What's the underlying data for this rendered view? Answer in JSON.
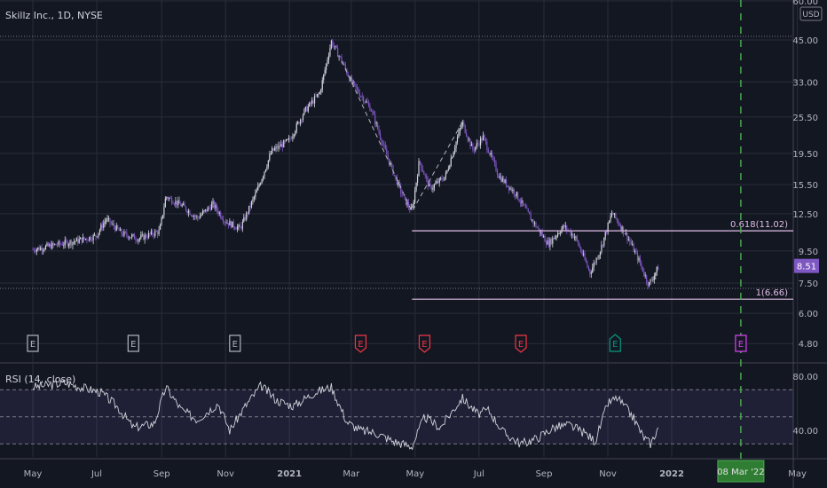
{
  "header": {
    "title": "Skillz Inc., 1D, NYSE",
    "currency": "USD"
  },
  "rsi_pane": {
    "title": "RSI (14, close)"
  },
  "chart_data": [
    {
      "type": "candlestick",
      "title": "Skillz Inc., 1D, NYSE",
      "y_scale": "log",
      "ylim": [
        4.2,
        60
      ],
      "y_ticks": [
        "60.00",
        "45.00",
        "33.00",
        "25.50",
        "19.50",
        "15.50",
        "12.50",
        "9.50",
        "7.50",
        "6.00",
        "4.80"
      ],
      "x_ticks": [
        "May",
        "Jul",
        "Sep",
        "Nov",
        "2021",
        "Mar",
        "May",
        "Jul",
        "Sep",
        "Nov",
        "2022",
        "May"
      ],
      "series": [
        {
          "name": "price",
          "points": [
            [
              "2020-05-01",
              9.6
            ],
            [
              "2020-05-20",
              9.9
            ],
            [
              "2020-06-10",
              10.2
            ],
            [
              "2020-06-30",
              10.6
            ],
            [
              "2020-07-10",
              12.0
            ],
            [
              "2020-07-25",
              10.8
            ],
            [
              "2020-08-10",
              10.4
            ],
            [
              "2020-08-30",
              11.0
            ],
            [
              "2020-09-05",
              14.2
            ],
            [
              "2020-09-20",
              13.3
            ],
            [
              "2020-10-05",
              12.1
            ],
            [
              "2020-10-20",
              13.4
            ],
            [
              "2020-11-01",
              11.8
            ],
            [
              "2020-11-15",
              11.2
            ],
            [
              "2020-12-01",
              14.8
            ],
            [
              "2020-12-15",
              19.8
            ],
            [
              "2021-01-01",
              21.5
            ],
            [
              "2021-01-15",
              26.5
            ],
            [
              "2021-01-30",
              30.5
            ],
            [
              "2021-02-10",
              44.5
            ],
            [
              "2021-02-20",
              38.5
            ],
            [
              "2021-03-01",
              33.0
            ],
            [
              "2021-03-10",
              30.0
            ],
            [
              "2021-03-20",
              27.0
            ],
            [
              "2021-04-01",
              20.5
            ],
            [
              "2021-04-10",
              17.0
            ],
            [
              "2021-04-20",
              14.0
            ],
            [
              "2021-04-28",
              12.7
            ],
            [
              "2021-05-05",
              18.5
            ],
            [
              "2021-05-15",
              15.0
            ],
            [
              "2021-05-30",
              16.5
            ],
            [
              "2021-06-15",
              24.5
            ],
            [
              "2021-06-25",
              20.0
            ],
            [
              "2021-07-05",
              22.0
            ],
            [
              "2021-07-20",
              16.5
            ],
            [
              "2021-08-05",
              14.5
            ],
            [
              "2021-08-20",
              12.0
            ],
            [
              "2021-09-05",
              10.0
            ],
            [
              "2021-09-20",
              11.4
            ],
            [
              "2021-10-01",
              10.5
            ],
            [
              "2021-10-15",
              8.1
            ],
            [
              "2021-10-25",
              9.6
            ],
            [
              "2021-11-05",
              12.6
            ],
            [
              "2021-11-20",
              10.5
            ],
            [
              "2021-12-01",
              8.8
            ],
            [
              "2021-12-10",
              7.4
            ],
            [
              "2021-12-20",
              8.51
            ]
          ]
        }
      ],
      "last_price": "8.51",
      "annotations": [
        {
          "type": "fib_level",
          "ratio": "0.618",
          "label": "0.618(11.02)",
          "value": 11.02,
          "from": "2021-04-28"
        },
        {
          "type": "fib_level",
          "ratio": "1",
          "label": "1(6.66)",
          "value": 6.66,
          "from": "2021-04-28"
        },
        {
          "type": "dashed_line",
          "points": [
            [
              "2021-02-20",
              38.5
            ],
            [
              "2021-04-28",
              12.7
            ],
            [
              "2021-06-15",
              24.5
            ]
          ]
        },
        {
          "type": "vertical_marker",
          "date": "2022-03-08",
          "label": "08 Mar '22"
        }
      ],
      "earnings_events": [
        {
          "date": "2020-05-01",
          "label": "E",
          "kind": "neutral"
        },
        {
          "date": "2020-08-05",
          "label": "E",
          "kind": "neutral"
        },
        {
          "date": "2020-11-10",
          "label": "E",
          "kind": "neutral"
        },
        {
          "date": "2021-03-10",
          "label": "E",
          "kind": "miss"
        },
        {
          "date": "2021-05-10",
          "label": "E",
          "kind": "miss"
        },
        {
          "date": "2021-08-10",
          "label": "E",
          "kind": "miss"
        },
        {
          "date": "2021-11-08",
          "label": "E",
          "kind": "beat"
        },
        {
          "date": "2022-03-08",
          "label": "E",
          "kind": "upcoming"
        }
      ],
      "colors": {
        "background": "#131722",
        "candle_up": "#d1d4dc",
        "candle_down": "#7e57c2",
        "fib": "#e1bee7",
        "last_price_bg": "#7e57c2",
        "marker": "#4caf50",
        "miss": "#f23645",
        "beat": "#089981",
        "upcoming": "#e040fb"
      }
    },
    {
      "type": "line",
      "title": "RSI (14, close)",
      "ylim": [
        25,
        90
      ],
      "y_ticks": [
        "80.00",
        "40.00"
      ],
      "bands": [
        70,
        50,
        30
      ],
      "series": [
        {
          "points": [
            [
              "2020-05-01",
              72
            ],
            [
              "2020-06-01",
              75
            ],
            [
              "2020-07-05",
              68
            ],
            [
              "2020-07-20",
              58
            ],
            [
              "2020-08-05",
              42
            ],
            [
              "2020-08-25",
              45
            ],
            [
              "2020-09-05",
              72
            ],
            [
              "2020-09-20",
              55
            ],
            [
              "2020-10-05",
              48
            ],
            [
              "2020-10-25",
              60
            ],
            [
              "2020-11-05",
              40
            ],
            [
              "2020-11-20",
              58
            ],
            [
              "2020-12-05",
              73
            ],
            [
              "2020-12-20",
              62
            ],
            [
              "2021-01-05",
              58
            ],
            [
              "2021-01-25",
              68
            ],
            [
              "2021-02-10",
              72
            ],
            [
              "2021-02-25",
              46
            ],
            [
              "2021-03-10",
              40
            ],
            [
              "2021-03-25",
              38
            ],
            [
              "2021-04-10",
              32
            ],
            [
              "2021-04-28",
              28
            ],
            [
              "2021-05-10",
              50
            ],
            [
              "2021-05-25",
              42
            ],
            [
              "2021-06-15",
              64
            ],
            [
              "2021-06-30",
              52
            ],
            [
              "2021-07-10",
              55
            ],
            [
              "2021-07-25",
              38
            ],
            [
              "2021-08-10",
              30
            ],
            [
              "2021-08-25",
              34
            ],
            [
              "2021-09-10",
              42
            ],
            [
              "2021-09-25",
              44
            ],
            [
              "2021-10-10",
              38
            ],
            [
              "2021-10-20",
              32
            ],
            [
              "2021-11-01",
              60
            ],
            [
              "2021-11-10",
              64
            ],
            [
              "2021-11-25",
              50
            ],
            [
              "2021-12-05",
              35
            ],
            [
              "2021-12-12",
              30
            ],
            [
              "2021-12-20",
              44
            ]
          ]
        }
      ],
      "colors": {
        "line": "#d1d4dc",
        "band_fill": "#7e57c2"
      }
    }
  ]
}
